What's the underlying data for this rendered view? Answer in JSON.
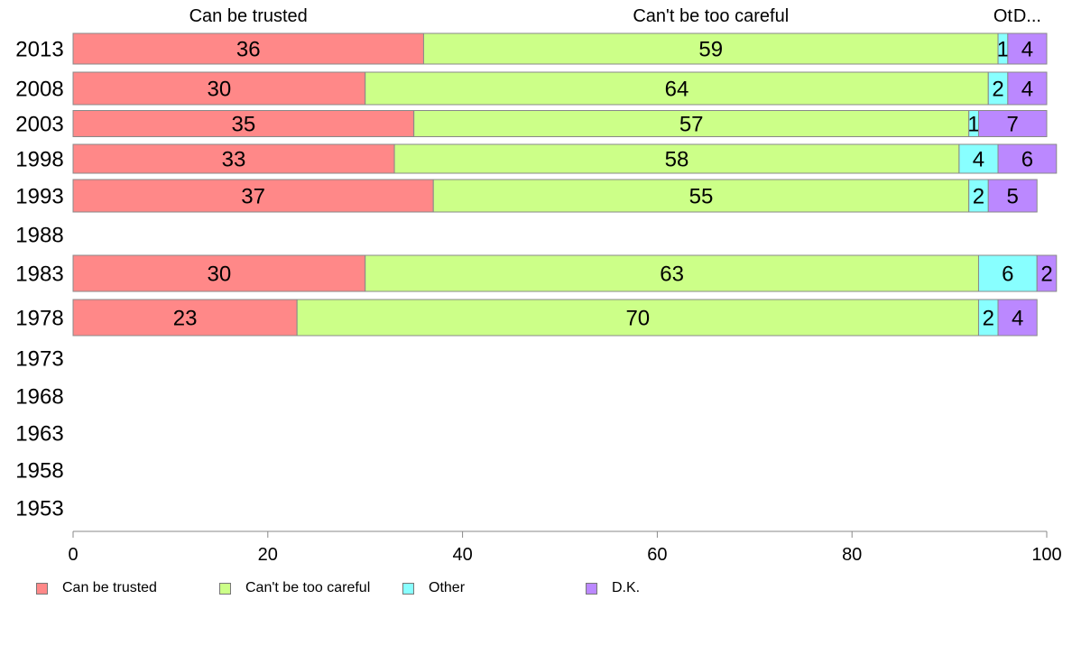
{
  "chart_data": {
    "type": "bar",
    "orientation": "horizontal",
    "stacked": true,
    "categories": [
      "2013",
      "2008",
      "2003",
      "1998",
      "1993",
      "1988",
      "1983",
      "1978",
      "1973",
      "1968",
      "1963",
      "1958",
      "1953"
    ],
    "series": [
      {
        "name": "Can be trusted",
        "short_label": "Can be trusted",
        "color": "#FF8888",
        "values": [
          36,
          30,
          35,
          33,
          37,
          null,
          30,
          23,
          null,
          null,
          null,
          null,
          null
        ]
      },
      {
        "name": "Can't be too careful",
        "short_label": "Can't be too careful",
        "color": "#CCFF88",
        "values": [
          59,
          64,
          57,
          58,
          55,
          null,
          63,
          70,
          null,
          null,
          null,
          null,
          null
        ]
      },
      {
        "name": "Other",
        "short_label": "Ot",
        "color": "#88FFFF",
        "values": [
          1,
          2,
          1,
          4,
          2,
          null,
          6,
          2,
          null,
          null,
          null,
          null,
          null
        ]
      },
      {
        "name": "D.K.",
        "short_label": "D...",
        "color": "#BB88FF",
        "values": [
          4,
          4,
          7,
          6,
          5,
          null,
          2,
          4,
          null,
          null,
          null,
          null,
          null
        ]
      }
    ],
    "xlim": [
      0,
      100
    ],
    "xticks": [
      0,
      20,
      40,
      60,
      80,
      100
    ],
    "grid": false,
    "legend_position": "bottom"
  }
}
